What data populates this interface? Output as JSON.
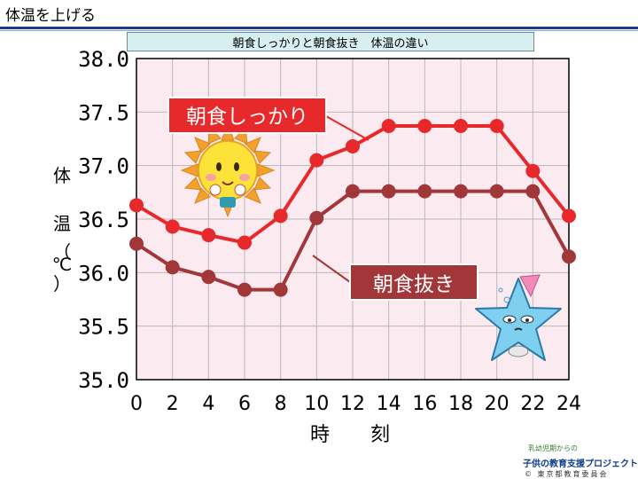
{
  "page": {
    "title": "体温を上げる"
  },
  "chart_data": {
    "type": "line",
    "title": "朝食しっかりと朝食抜き　体温の違い",
    "xlabel": "時　刻",
    "ylabel_chars": [
      "体",
      "温",
      "（",
      "℃",
      "）"
    ],
    "x": [
      0,
      2,
      4,
      6,
      8,
      10,
      12,
      14,
      16,
      18,
      20,
      22,
      24
    ],
    "x_ticks": [
      "0",
      "2",
      "4",
      "6",
      "8",
      "10",
      "12",
      "14",
      "16",
      "18",
      "20",
      "22",
      "24"
    ],
    "y_ticks": [
      "35.0",
      "35.5",
      "36.0",
      "36.5",
      "37.0",
      "37.5",
      "38.0"
    ],
    "ylim": [
      35.0,
      38.0
    ],
    "xlim": [
      0,
      24
    ],
    "grid": true,
    "series": [
      {
        "name": "朝食しっかり",
        "color": "#e8292b",
        "values": [
          36.63,
          36.43,
          36.35,
          36.28,
          36.53,
          37.05,
          37.18,
          37.37,
          37.37,
          37.37,
          37.37,
          36.95,
          36.53
        ]
      },
      {
        "name": "朝食抜き",
        "color": "#a2373a",
        "values": [
          36.27,
          36.05,
          35.96,
          35.84,
          35.84,
          36.51,
          36.76,
          36.76,
          36.76,
          36.76,
          36.76,
          36.76,
          36.15
        ]
      }
    ],
    "colors": {
      "plot_bg": "#fbeaf0",
      "grid": "#b8b8b8",
      "frame": "#000000"
    }
  },
  "footer": {
    "line1": "乳幼児期からの",
    "line2": "子供の教育支援プロジェクト",
    "line3": "© 東京都教育委員会"
  }
}
